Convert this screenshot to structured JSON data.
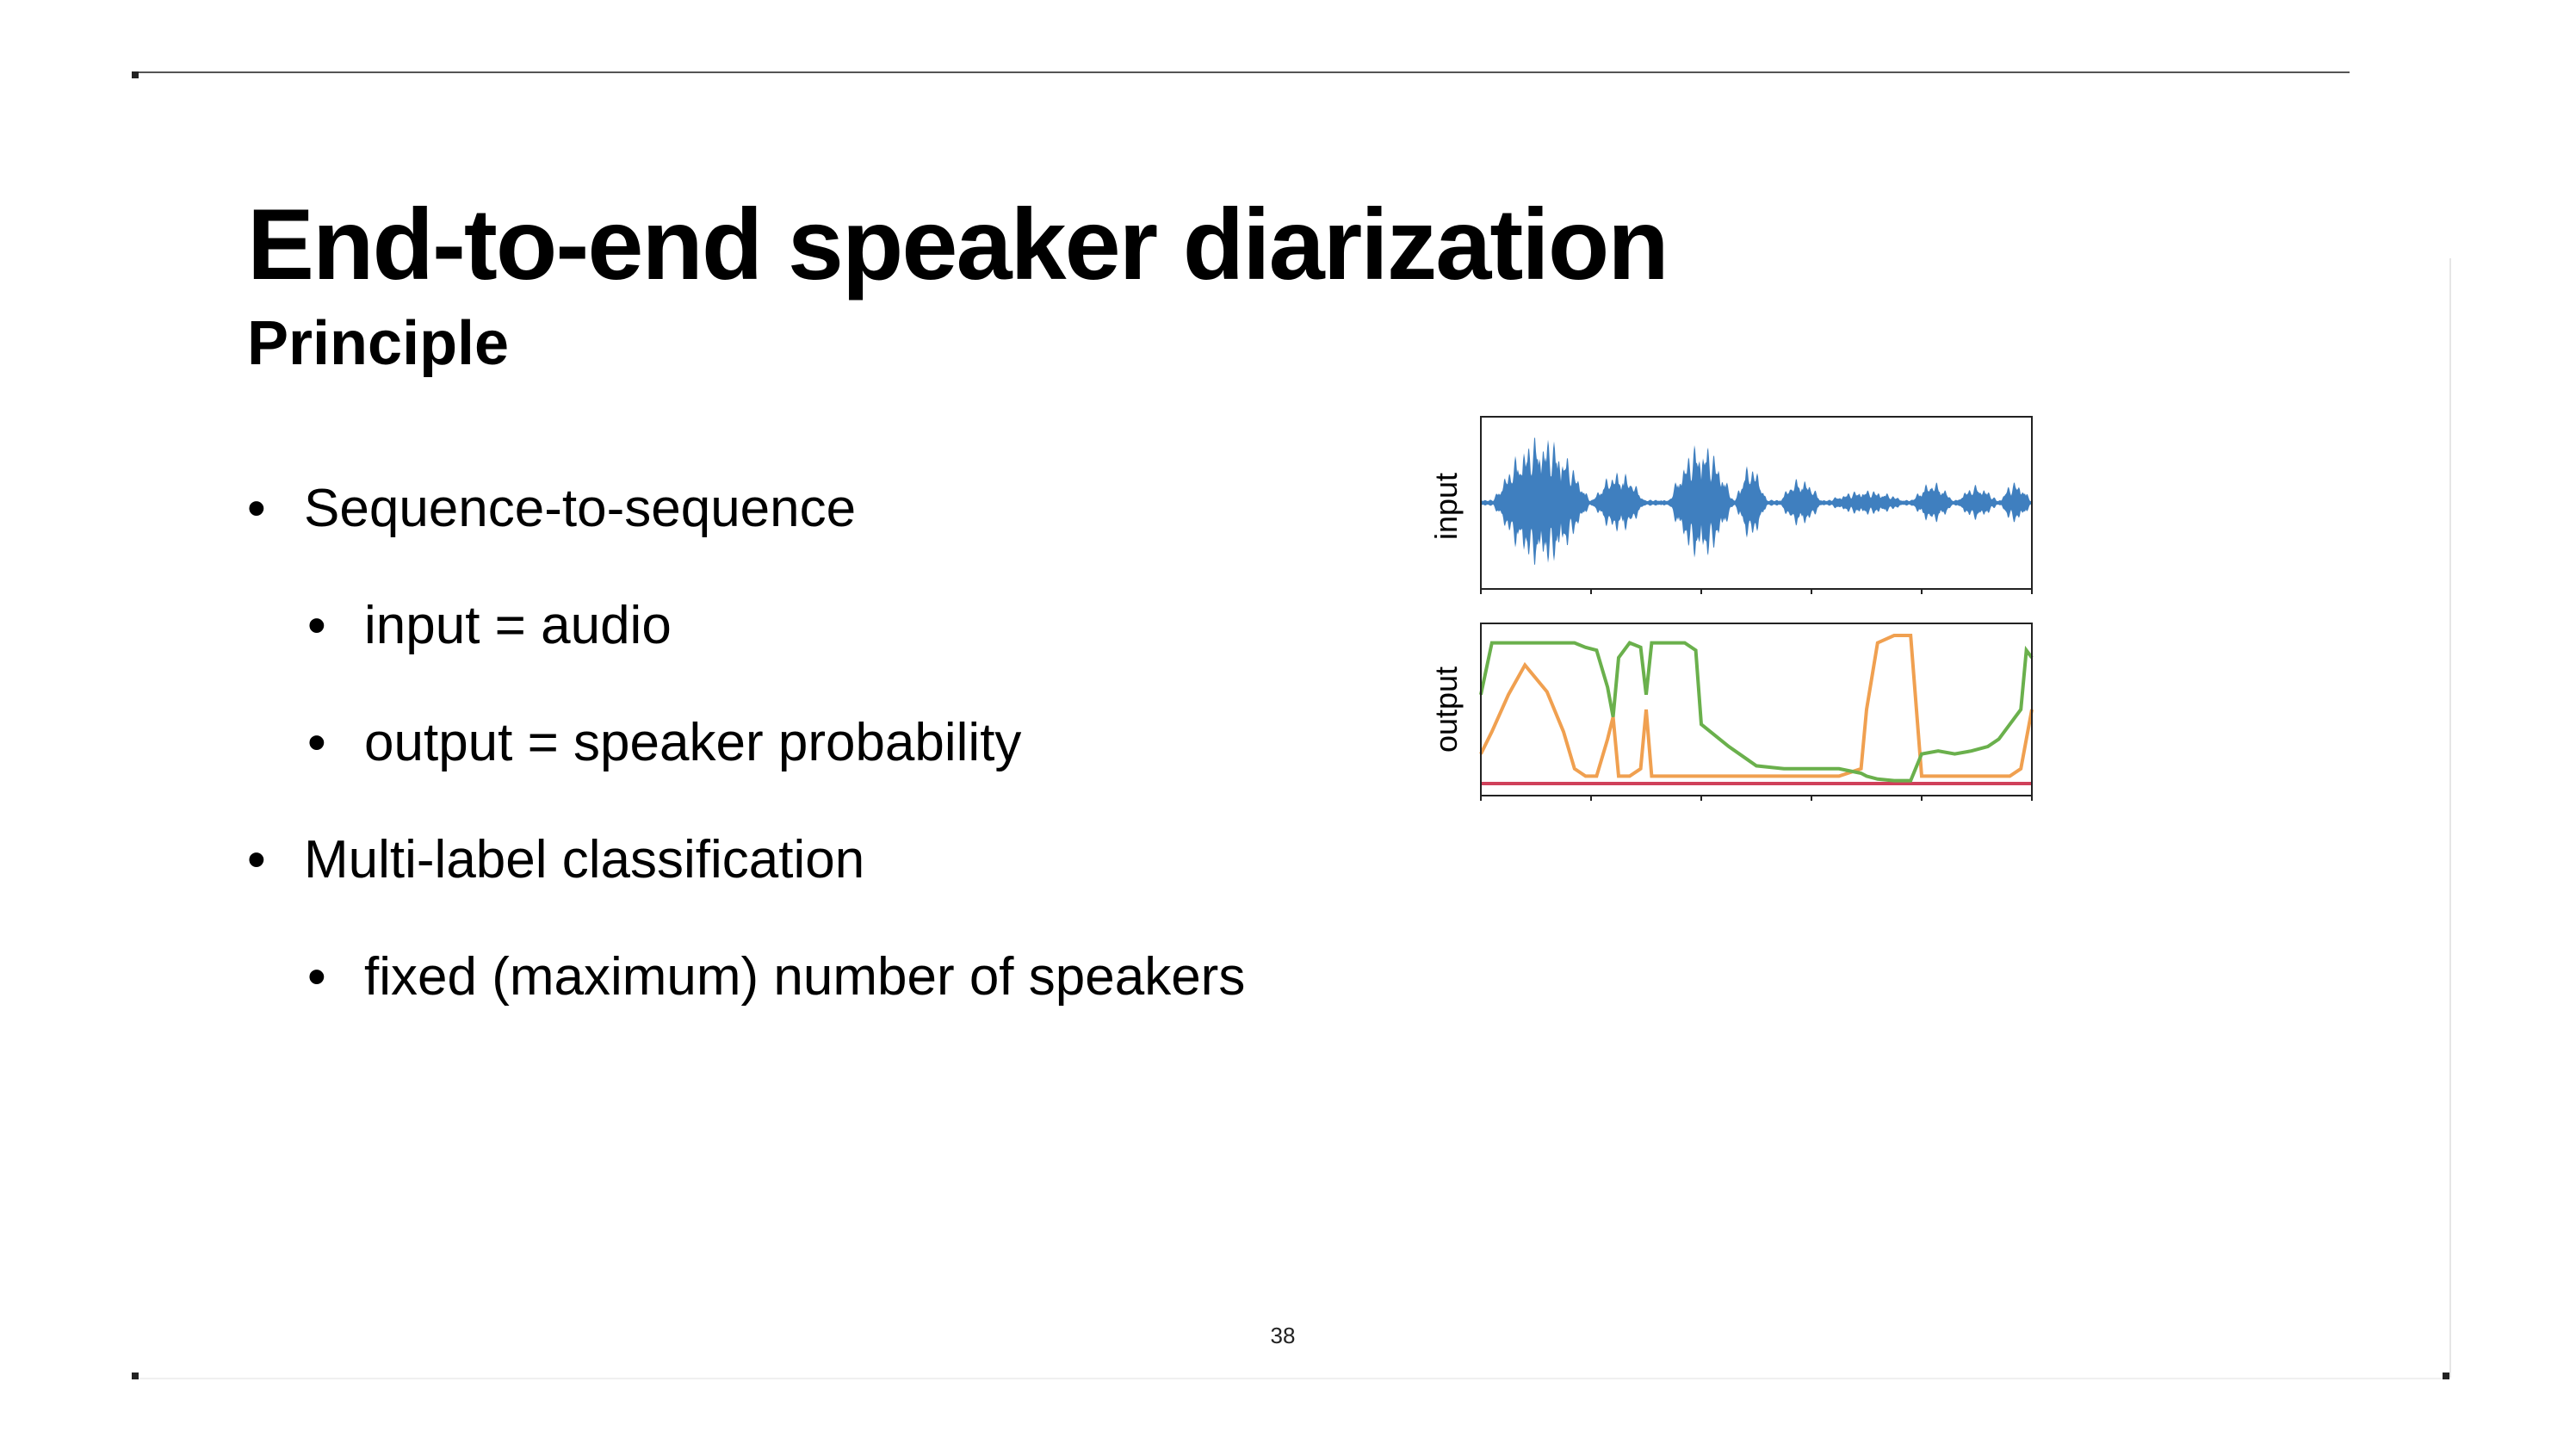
{
  "slide": {
    "title": "End-to-end speaker diarization",
    "subtitle": "Principle",
    "page_number": "38"
  },
  "bullets": [
    {
      "level": 1,
      "text": "Sequence-to-sequence"
    },
    {
      "level": 2,
      "text": "input = audio"
    },
    {
      "level": 2,
      "text": "output = speaker probability"
    },
    {
      "level": 1,
      "text": "Multi-label classification"
    },
    {
      "level": 2,
      "text": "fixed (maximum) number of speakers"
    }
  ],
  "figure": {
    "input_label": "input",
    "output_label": "output",
    "colors": {
      "waveform": "#3f7fbf",
      "speaker_orange": "#f0a050",
      "speaker_green": "#6ab04c",
      "speaker_red": "#d0405a",
      "frame": "#222222"
    }
  },
  "chart_data": {
    "type": "line",
    "series": [
      {
        "x": [
          0,
          0.02,
          0.05,
          0.08,
          0.12,
          0.15,
          0.17,
          0.19,
          0.21,
          0.23,
          0.24,
          0.25,
          0.27,
          0.29,
          0.3,
          0.31,
          0.33,
          0.35,
          0.37,
          0.39,
          0.4,
          0.45,
          0.5,
          0.55,
          0.6,
          0.65,
          0.69,
          0.7,
          0.72,
          0.75,
          0.78,
          0.8,
          0.83,
          0.86,
          0.89,
          0.92,
          0.94,
          0.96,
          0.98,
          0.99,
          1.0
        ],
        "values": [
          0.2,
          0.35,
          0.6,
          0.8,
          0.62,
          0.35,
          0.1,
          0.05,
          0.05,
          0.3,
          0.45,
          0.05,
          0.05,
          0.1,
          0.5,
          0.05,
          0.05,
          0.05,
          0.05,
          0.05,
          0.05,
          0.05,
          0.05,
          0.05,
          0.05,
          0.05,
          0.1,
          0.5,
          0.95,
          1.0,
          1.0,
          0.05,
          0.05,
          0.05,
          0.05,
          0.05,
          0.05,
          0.05,
          0.1,
          0.3,
          0.5
        ]
      },
      {
        "x": [
          0,
          0.02,
          0.05,
          0.08,
          0.12,
          0.15,
          0.17,
          0.19,
          0.21,
          0.23,
          0.24,
          0.25,
          0.27,
          0.29,
          0.3,
          0.31,
          0.33,
          0.35,
          0.37,
          0.39,
          0.4,
          0.45,
          0.5,
          0.55,
          0.6,
          0.65,
          0.69,
          0.7,
          0.72,
          0.75,
          0.78,
          0.8,
          0.83,
          0.86,
          0.89,
          0.92,
          0.94,
          0.96,
          0.98,
          0.99,
          1.0
        ],
        "values": [
          0.6,
          0.95,
          0.95,
          0.95,
          0.95,
          0.95,
          0.95,
          0.92,
          0.9,
          0.65,
          0.45,
          0.85,
          0.95,
          0.92,
          0.6,
          0.95,
          0.95,
          0.95,
          0.95,
          0.9,
          0.4,
          0.25,
          0.12,
          0.1,
          0.1,
          0.1,
          0.07,
          0.05,
          0.03,
          0.02,
          0.02,
          0.2,
          0.22,
          0.2,
          0.22,
          0.25,
          0.3,
          0.4,
          0.5,
          0.9,
          0.85
        ]
      },
      {
        "x": [
          0,
          1.0
        ],
        "values": [
          0.0,
          0.0
        ]
      }
    ]
  }
}
